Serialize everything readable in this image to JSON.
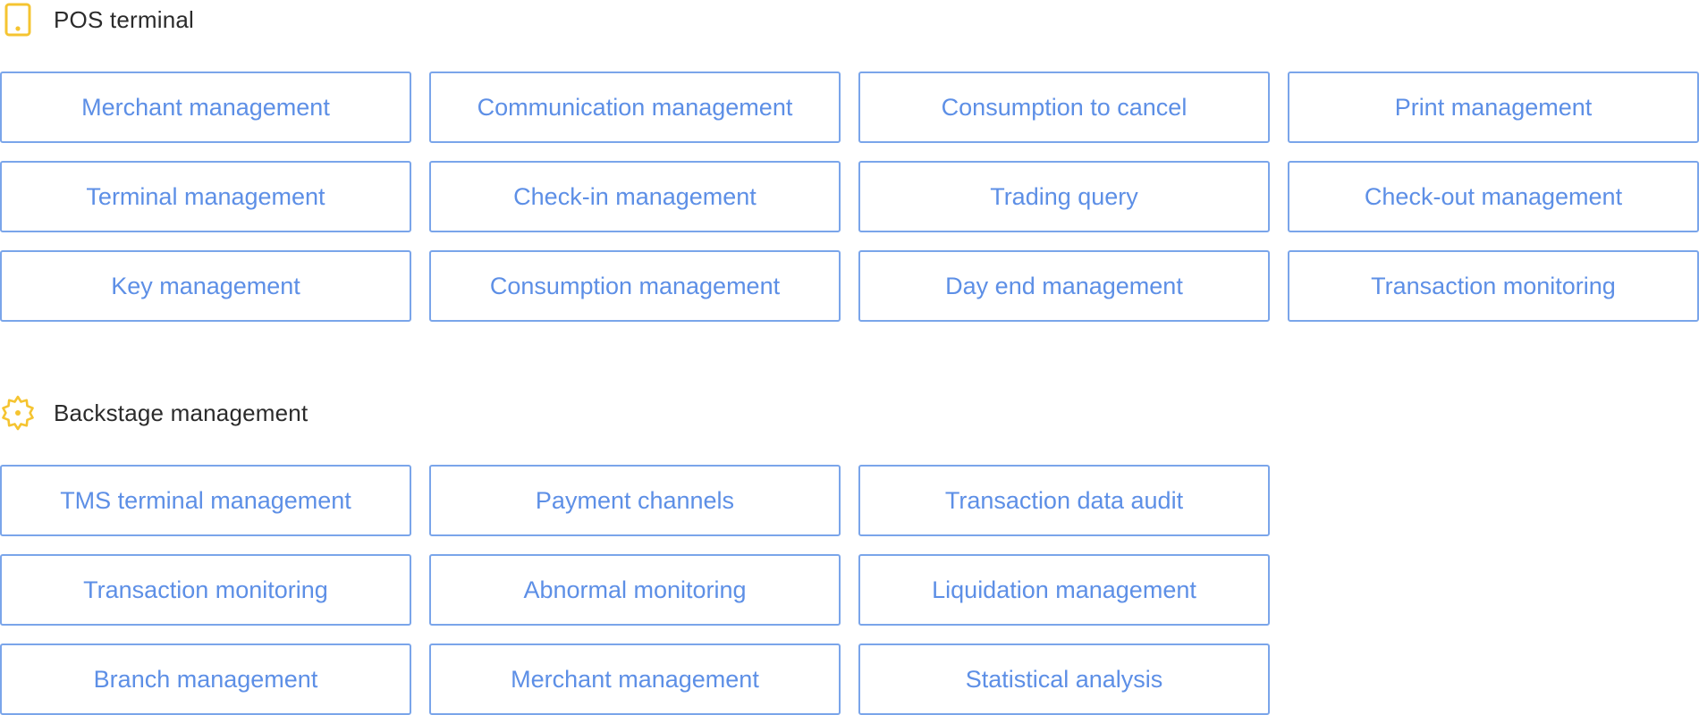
{
  "pos_section": {
    "title": "POS terminal",
    "icon": "tablet-icon",
    "icon_color": "#f5c431",
    "tiles": [
      "Merchant management",
      "Communication management",
      "Consumption to cancel",
      "Print management",
      "Terminal management",
      "Check-in management",
      "Trading query",
      "Check-out management",
      "Key management",
      "Consumption management",
      "Day end management",
      "Transaction monitoring"
    ]
  },
  "backstage_section": {
    "title": "Backstage management",
    "icon": "gear-icon",
    "icon_color": "#f5c431",
    "tiles": [
      "TMS terminal management",
      "Payment channels",
      "Transaction data audit",
      "",
      "Transaction monitoring",
      "Abnormal monitoring",
      "Liquidation management",
      "",
      "Branch management",
      "Merchant management",
      "Statistical analysis",
      ""
    ]
  },
  "colors": {
    "tile_border": "#7aa5ea",
    "tile_text": "#5d8fe6",
    "heading_text": "#2b2b2b"
  }
}
